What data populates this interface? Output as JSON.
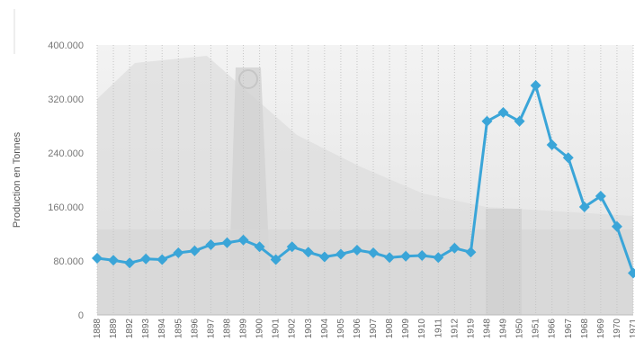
{
  "chart_data": {
    "type": "line",
    "title": "",
    "xlabel": "",
    "ylabel": "Production en Tonnes",
    "ylim": [
      0,
      400000
    ],
    "yticks": [
      "0",
      "80.000",
      "160.000",
      "240.000",
      "320.000",
      "400.000"
    ],
    "ytick_values": [
      0,
      80000,
      160000,
      240000,
      320000,
      400000
    ],
    "categories": [
      "1888",
      "1889",
      "1892",
      "1893",
      "1894",
      "1895",
      "1896",
      "1897",
      "1898",
      "1899",
      "1900",
      "1901",
      "1902",
      "1903",
      "1904",
      "1905",
      "1906",
      "1907",
      "1908",
      "1909",
      "1910",
      "1911",
      "1912",
      "1919",
      "1948",
      "1949",
      "1950",
      "1951",
      "1966",
      "1967",
      "1968",
      "1969",
      "1970",
      "1971"
    ],
    "series": [
      {
        "color": "#3aa5d8",
        "marker": "diamond",
        "values": [
          84000,
          81000,
          77000,
          83000,
          82000,
          92000,
          95000,
          104000,
          107000,
          111000,
          101000,
          82000,
          101000,
          93000,
          86000,
          90000,
          96000,
          92000,
          85000,
          87000,
          88000,
          85000,
          99000,
          93000,
          287000,
          300000,
          287000,
          340000,
          252000,
          233000,
          160000,
          176000,
          131000,
          62000
        ]
      }
    ],
    "grid": {
      "vertical": true,
      "horizontal": false
    },
    "legend": "none",
    "background": "faded grayscale photograph of a mine headframe behind the plot area"
  }
}
